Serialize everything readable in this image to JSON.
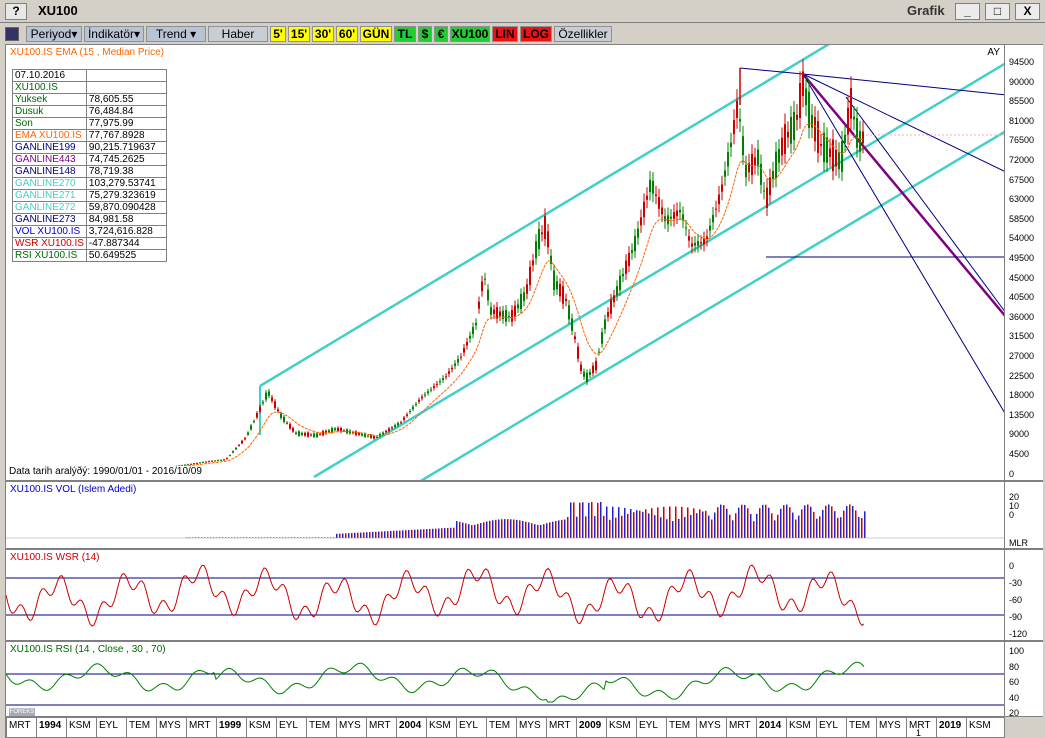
{
  "window": {
    "title": "XU100",
    "app_name": "Grafik",
    "help": "?",
    "minimize": "_",
    "maximize": "□",
    "close": "X"
  },
  "toolbar": {
    "items": [
      {
        "label": "Periyod▾",
        "style": "dd",
        "w": 56
      },
      {
        "label": "İndikatör▾",
        "style": "dd",
        "w": 60
      },
      {
        "label": "Trend ▾",
        "style": "dd",
        "w": 60
      },
      {
        "label": "Haber",
        "style": "",
        "w": 60
      },
      {
        "label": "5'",
        "style": "y",
        "w": 16
      },
      {
        "label": "15'",
        "style": "y",
        "w": 22
      },
      {
        "label": "30'",
        "style": "y",
        "w": 22
      },
      {
        "label": "60'",
        "style": "y",
        "w": 22
      },
      {
        "label": "GÜN",
        "style": "y",
        "w": 32
      },
      {
        "label": "TL",
        "style": "g",
        "w": 22
      },
      {
        "label": "$",
        "style": "g",
        "w": 14
      },
      {
        "label": "€",
        "style": "g",
        "w": 14
      },
      {
        "label": "XU100",
        "style": "g",
        "w": 40
      },
      {
        "label": "LIN",
        "style": "r",
        "w": 26
      },
      {
        "label": "LOG",
        "style": "r",
        "w": 32
      },
      {
        "label": "Özellikler",
        "style": "",
        "w": 58
      }
    ]
  },
  "main": {
    "title": "XU100.IS EMA (15 , Median Price)",
    "ay_label": "AY",
    "date_range": "Data tarih aralýðý: 1990/01/01 - 2016/10/09",
    "info": [
      {
        "k": "07.10.2016",
        "v": "",
        "c": "#000"
      },
      {
        "k": "XU100.IS",
        "v": "",
        "c": "#006600"
      },
      {
        "k": " Yuksek",
        "v": "78,605.55",
        "c": "#006600"
      },
      {
        "k": " Dusuk",
        "v": "76,484.84",
        "c": "#006600"
      },
      {
        "k": " Son",
        "v": "77,975.99",
        "c": "#006600"
      },
      {
        "k": "EMA XU100.IS",
        "v": "77,767.8928",
        "c": "#ff6600"
      },
      {
        "k": "GANLINE199",
        "v": "90,215.719637",
        "c": "#000080"
      },
      {
        "k": "GANLINE443",
        "v": "74,745.2625",
        "c": "#800080"
      },
      {
        "k": "GANLINE148",
        "v": "78,719.38",
        "c": "#000080"
      },
      {
        "k": "GANLINE270",
        "v": "103,279.53741",
        "c": "#40d0c8"
      },
      {
        "k": "GANLINE271",
        "v": "75,279.323619",
        "c": "#40d0c8"
      },
      {
        "k": "GANLINE272",
        "v": "59,870.090428",
        "c": "#40d0c8"
      },
      {
        "k": "GANLINE273",
        "v": "84,981.58",
        "c": "#000080"
      },
      {
        "k": "VOL XU100.IS",
        "v": "3,724,616.828",
        "c": "#0000cc"
      },
      {
        "k": "WSR XU100.IS",
        "v": "-47.887344",
        "c": "#cc0000"
      },
      {
        "k": "RSI XU100.IS",
        "v": "50.649525",
        "c": "#006600"
      }
    ],
    "y_ticks": [
      "94500",
      "90000",
      "85500",
      "81000",
      "76500",
      "72000",
      "67500",
      "63000",
      "58500",
      "54000",
      "49500",
      "45000",
      "40500",
      "36000",
      "31500",
      "27000",
      "22500",
      "18000",
      "13500",
      "9000",
      "4500",
      "0"
    ]
  },
  "vol": {
    "title": "XU100.IS VOL (Islem Adedi)",
    "ticks": [
      "20",
      "10",
      "0"
    ],
    "unit": "MLR"
  },
  "wsr": {
    "title": "XU100.IS WSR (14)",
    "ticks": [
      "0",
      "-30",
      "-60",
      "-90",
      "-120"
    ]
  },
  "rsi": {
    "title": "XU100.IS RSI (14 , Close , 30 , 70)",
    "ticks": [
      "100",
      "80",
      "60",
      "40",
      "20"
    ]
  },
  "xaxis": {
    "labels": [
      "MRT",
      "1994",
      "KSM",
      "EYL",
      "TEM",
      "MYS",
      "MRT",
      "1999",
      "KSM",
      "EYL",
      "TEM",
      "MYS",
      "MRT",
      "2004",
      "KSM",
      "EYL",
      "TEM",
      "MYS",
      "MRT",
      "2009",
      "KSM",
      "EYL",
      "TEM",
      "MYS",
      "MRT",
      "2014",
      "KSM",
      "EYL",
      "TEM",
      "MYS",
      "MRT",
      "2019",
      "KSM"
    ],
    "bold": [
      "1994",
      "1999",
      "2004",
      "2009",
      "2014",
      "2019"
    ],
    "tail_label": "1"
  },
  "colors": {
    "cyan": "#40d0c8",
    "navy": "#000080",
    "purple": "#800080",
    "up": "#008000",
    "down": "#cc0000",
    "ema": "#ff6600"
  }
}
